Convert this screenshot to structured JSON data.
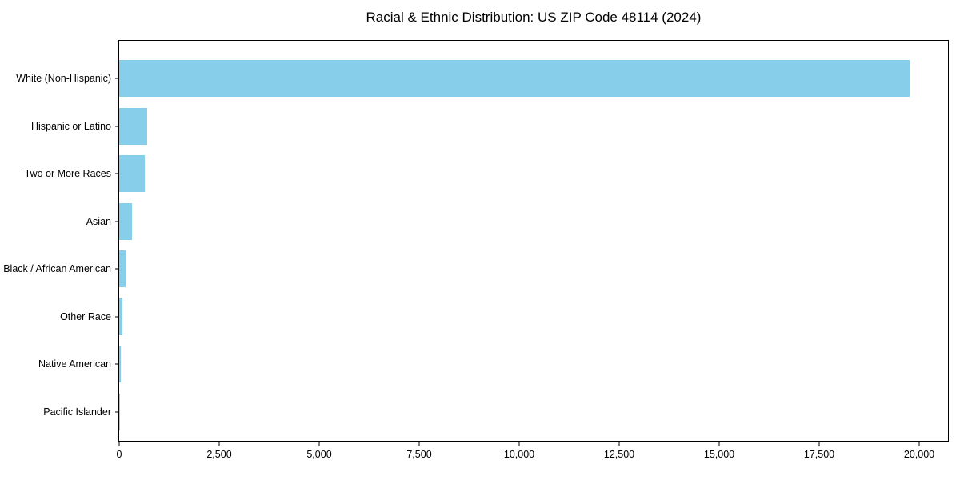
{
  "title": "Racial & Ethnic Distribution: US ZIP Code 48114 (2024)",
  "chart_data": {
    "type": "bar",
    "orientation": "horizontal",
    "title": "Racial & Ethnic Distribution: US ZIP Code 48114 (2024)",
    "categories": [
      "White (Non-Hispanic)",
      "Hispanic or Latino",
      "Two or More Races",
      "Asian",
      "Black / African American",
      "Other Race",
      "Native American",
      "Pacific Islander"
    ],
    "values": [
      19750,
      690,
      640,
      310,
      160,
      80,
      30,
      5
    ],
    "xlabel": "",
    "ylabel": "",
    "xlim": [
      0,
      20760
    ],
    "x_ticks": [
      0,
      2500,
      5000,
      7500,
      10000,
      12500,
      15000,
      17500,
      20000
    ],
    "x_tick_labels": [
      "0",
      "2,500",
      "5,000",
      "7,500",
      "10,000",
      "12,500",
      "15,000",
      "17,500",
      "20,000"
    ],
    "bar_color": "#87CEEB",
    "frame_color": "#000000",
    "grid": false,
    "legend": null
  }
}
